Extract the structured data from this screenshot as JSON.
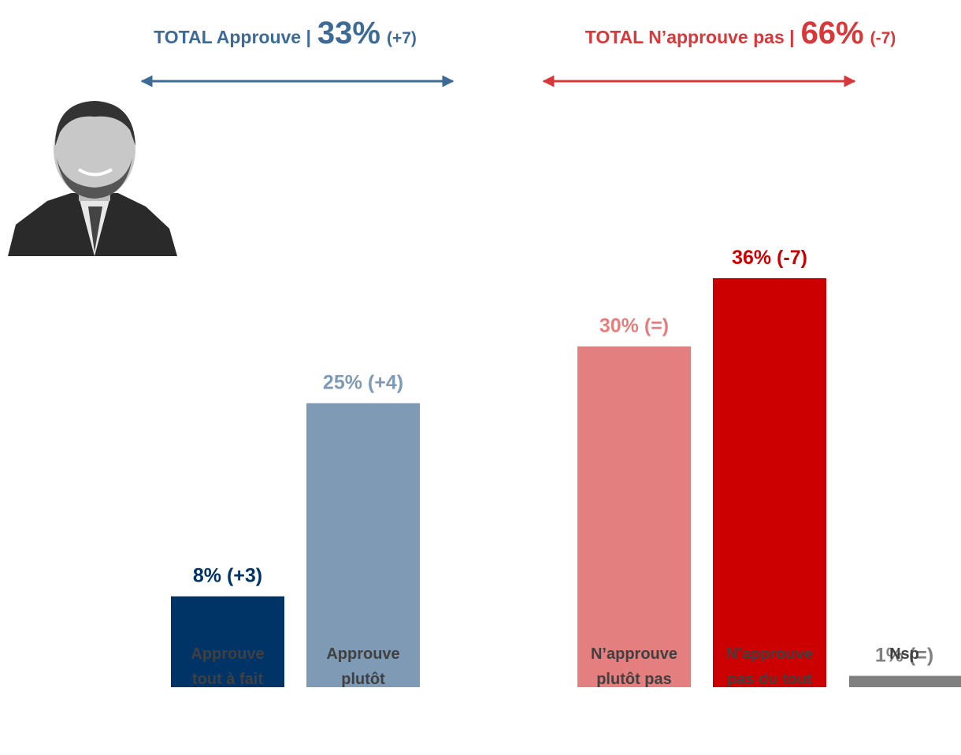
{
  "chart_data": {
    "type": "bar",
    "headers": [
      {
        "label": "TOTAL Approuve |",
        "value_label": "33%",
        "change": "(+7)",
        "color": "#3e6a96"
      },
      {
        "label": "TOTAL N’approuve pas |",
        "value_label": "66%",
        "change": "(-7)",
        "color": "#d9383a"
      }
    ],
    "categories": [
      [
        "Approuve",
        "tout à fait"
      ],
      [
        "Approuve",
        "plutôt"
      ],
      [
        "N’approuve",
        "plutôt pas"
      ],
      [
        "N’approuve",
        "pas du tout"
      ],
      [
        "Nsp"
      ]
    ],
    "values": [
      8,
      25,
      30,
      36,
      1
    ],
    "value_labels": [
      "8% (+3)",
      "25% (+4)",
      "30% (=)",
      "36% (-7)",
      "1% (=)"
    ],
    "colors": [
      "#003366",
      "#7f9ab5",
      "#e47f7f",
      "#cc0000",
      "#808080"
    ],
    "ylim": [
      0,
      36
    ]
  }
}
